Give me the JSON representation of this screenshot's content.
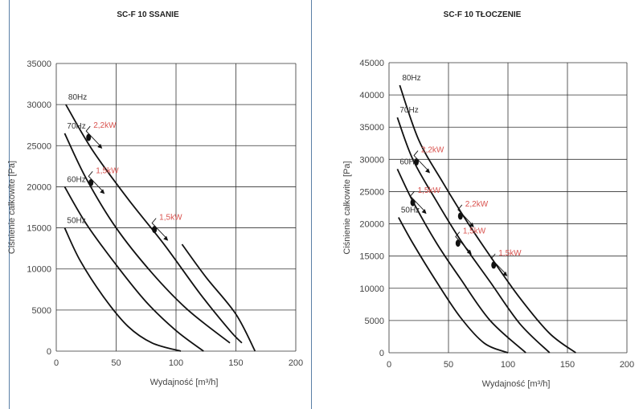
{
  "colors": {
    "curve": "#111111",
    "grid": "#333333",
    "annotation": "#d9534f",
    "divider": "#5a7fa6"
  },
  "chart_data": [
    {
      "type": "line",
      "title": "SC-F 10 SSANIE",
      "xlabel": "Wydajność [m³/h]",
      "ylabel": "Ciśnienie całkowite [Pa]",
      "xlim": [
        0,
        200
      ],
      "ylim": [
        0,
        35000
      ],
      "xticks": [
        0,
        50,
        100,
        150,
        200
      ],
      "yticks": [
        0,
        5000,
        10000,
        15000,
        20000,
        25000,
        30000,
        35000
      ],
      "xtick_labels": [
        "0",
        "50",
        "100",
        "150",
        "200"
      ],
      "ytick_labels": [
        "0",
        "5000",
        "10000",
        "15000",
        "20000",
        "25000",
        "30000",
        "35000"
      ],
      "grid": true,
      "series": [
        {
          "name": "80Hz",
          "points": [
            [
              8,
              30000
            ],
            [
              30,
              24500
            ],
            [
              60,
              18500
            ],
            [
              90,
              13000
            ],
            [
              120,
              7000
            ],
            [
              145,
              2500
            ],
            [
              155,
              1000
            ]
          ]
        },
        {
          "name": "80Hz",
          "points": [
            [
              105,
              13000
            ],
            [
              125,
              9000
            ],
            [
              150,
              4500
            ],
            [
              166,
              0
            ]
          ]
        },
        {
          "name": "70Hz",
          "points": [
            [
              7,
              26500
            ],
            [
              25,
              21000
            ],
            [
              50,
              15000
            ],
            [
              80,
              9500
            ],
            [
              110,
              5000
            ],
            [
              145,
              1000
            ]
          ]
        },
        {
          "name": "60Hz",
          "points": [
            [
              7,
              20000
            ],
            [
              25,
              15500
            ],
            [
              50,
              10500
            ],
            [
              75,
              6000
            ],
            [
              100,
              2500
            ],
            [
              123,
              0
            ]
          ]
        },
        {
          "name": "50Hz",
          "points": [
            [
              7,
              15000
            ],
            [
              20,
              11000
            ],
            [
              40,
              6500
            ],
            [
              60,
              3000
            ],
            [
              80,
              1000
            ],
            [
              104,
              0
            ]
          ]
        }
      ],
      "markers": [
        {
          "label": "2,2kW",
          "x": 27,
          "y": 26000
        },
        {
          "label": "1,5kW",
          "x": 29,
          "y": 20500
        },
        {
          "label": "1,5kW",
          "x": 82,
          "y": 14800
        }
      ]
    },
    {
      "type": "line",
      "title": "SC-F 10 TŁOCZENIE",
      "xlabel": "Wydajność [m³/h]",
      "ylabel": "Ciśnienie całkowite [Pa]",
      "xlim": [
        0,
        200
      ],
      "ylim": [
        0,
        45000
      ],
      "xticks": [
        0,
        50,
        100,
        150,
        200
      ],
      "yticks": [
        0,
        5000,
        10000,
        15000,
        20000,
        25000,
        30000,
        35000,
        40000,
        45000
      ],
      "xtick_labels": [
        "0",
        "50",
        "100",
        "150",
        "200"
      ],
      "ytick_labels": [
        "0",
        "5000",
        "10000",
        "15000",
        "20000",
        "25000",
        "30000",
        "35000",
        "40000",
        "45000"
      ],
      "grid": true,
      "series": [
        {
          "name": "80Hz",
          "points": [
            [
              9,
              41500
            ],
            [
              25,
              33000
            ],
            [
              45,
              26500
            ],
            [
              65,
              20500
            ],
            [
              85,
              15000
            ],
            [
              110,
              8500
            ],
            [
              135,
              3000
            ],
            [
              157,
              0
            ]
          ]
        },
        {
          "name": "70Hz",
          "points": [
            [
              7,
              36500
            ],
            [
              20,
              30000
            ],
            [
              40,
              23500
            ],
            [
              60,
              17500
            ],
            [
              85,
              11000
            ],
            [
              110,
              4500
            ],
            [
              135,
              0
            ]
          ]
        },
        {
          "name": "60Hz",
          "points": [
            [
              7,
              28500
            ],
            [
              20,
              23500
            ],
            [
              40,
              17000
            ],
            [
              60,
              11500
            ],
            [
              85,
              5000
            ],
            [
              115,
              0
            ]
          ]
        },
        {
          "name": "50Hz",
          "points": [
            [
              8,
              21000
            ],
            [
              20,
              17000
            ],
            [
              40,
              11000
            ],
            [
              60,
              5500
            ],
            [
              80,
              1500
            ],
            [
              100,
              0
            ]
          ]
        }
      ],
      "markers": [
        {
          "label": "2,2kW",
          "x": 23,
          "y": 29600
        },
        {
          "label": "1,5kW",
          "x": 20,
          "y": 23300
        },
        {
          "label": "2,2kW",
          "x": 60,
          "y": 21200
        },
        {
          "label": "1,5kW",
          "x": 58,
          "y": 17000
        },
        {
          "label": "1,5kW",
          "x": 88,
          "y": 13600
        }
      ]
    }
  ]
}
